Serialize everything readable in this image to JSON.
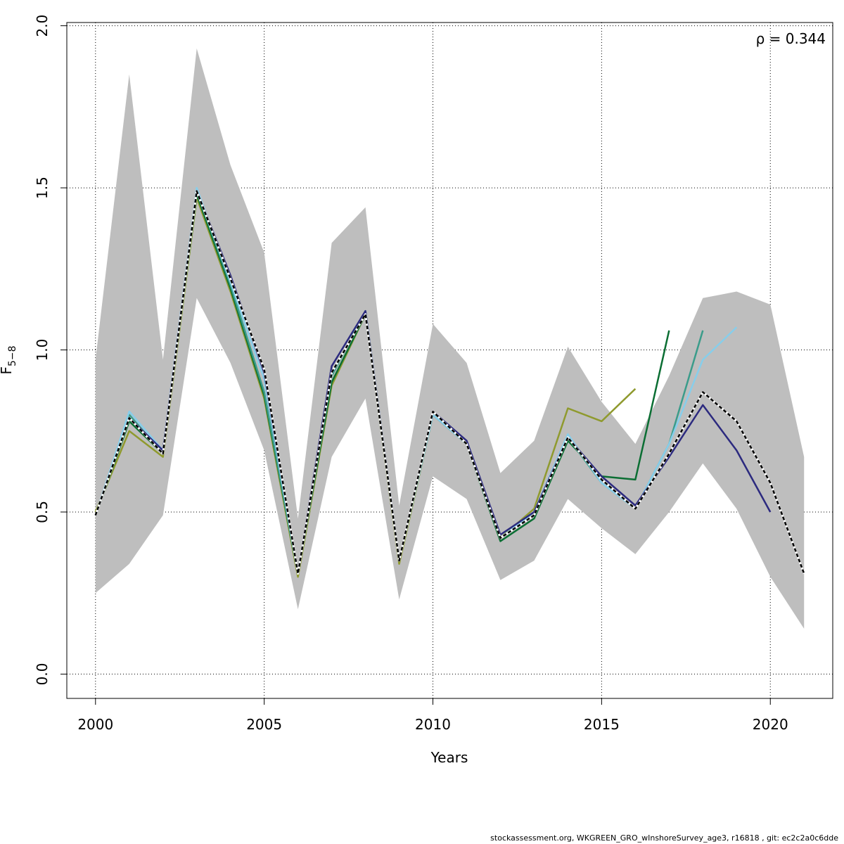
{
  "chart_data": {
    "type": "line",
    "title": "",
    "xlabel": "Years",
    "ylabel": {
      "main": "F",
      "sub": "5−8"
    },
    "xlim": [
      1999.15,
      2021.85
    ],
    "ylim": [
      -0.075,
      2.01
    ],
    "x_ticks": [
      2000,
      2005,
      2010,
      2015,
      2020
    ],
    "x_tick_labels": [
      "2000",
      "2005",
      "2010",
      "2015",
      "2020"
    ],
    "y_ticks": [
      0,
      0.5,
      1,
      1.5,
      2
    ],
    "y_tick_labels": [
      "0.0",
      "0.5",
      "1.0",
      "1.5",
      "2.0"
    ],
    "grid": true,
    "annotation": "ρ = 0.344",
    "band": {
      "color": "#bebebe",
      "x": [
        2000,
        2001,
        2002,
        2003,
        2004,
        2005,
        2006,
        2007,
        2008,
        2009,
        2010,
        2011,
        2012,
        2013,
        2014,
        2015,
        2016,
        2017,
        2018,
        2019,
        2020,
        2021
      ],
      "lower": [
        0.25,
        0.34,
        0.49,
        1.16,
        0.96,
        0.69,
        0.2,
        0.67,
        0.85,
        0.23,
        0.61,
        0.54,
        0.29,
        0.35,
        0.54,
        0.45,
        0.37,
        0.5,
        0.65,
        0.51,
        0.3,
        0.14
      ],
      "upper": [
        0.97,
        1.85,
        0.97,
        1.93,
        1.57,
        1.3,
        0.48,
        1.33,
        1.44,
        0.52,
        1.08,
        0.96,
        0.62,
        0.72,
        1.01,
        0.84,
        0.71,
        0.92,
        1.16,
        1.18,
        1.14,
        0.67
      ]
    },
    "series": [
      {
        "color": "#000000",
        "dashed": true,
        "x": [
          2000,
          2001,
          2002,
          2003,
          2004,
          2005,
          2006,
          2007,
          2008,
          2009,
          2010,
          2011,
          2012,
          2013,
          2014,
          2015,
          2016,
          2017,
          2018,
          2019,
          2020,
          2021
        ],
        "values": [
          0.49,
          0.79,
          0.68,
          1.49,
          1.22,
          0.94,
          0.31,
          0.93,
          1.11,
          0.35,
          0.81,
          0.71,
          0.42,
          0.49,
          0.73,
          0.6,
          0.51,
          0.68,
          0.87,
          0.78,
          0.59,
          0.31
        ]
      },
      {
        "color": "#2c2a7f",
        "x": [
          2000,
          2001,
          2002,
          2003,
          2004,
          2005,
          2006,
          2007,
          2008,
          2009,
          2010,
          2011,
          2012,
          2013,
          2014,
          2015,
          2016,
          2017,
          2018,
          2019,
          2020
        ],
        "values": [
          0.49,
          0.79,
          0.69,
          1.49,
          1.23,
          0.93,
          0.31,
          0.95,
          1.12,
          0.35,
          0.81,
          0.72,
          0.43,
          0.5,
          0.73,
          0.61,
          0.52,
          0.67,
          0.83,
          0.69,
          0.5
        ]
      },
      {
        "color": "#87ceeb",
        "x": [
          2000,
          2001,
          2002,
          2003,
          2004,
          2005,
          2006,
          2007,
          2008,
          2009,
          2010,
          2011,
          2012,
          2013,
          2014,
          2015,
          2016,
          2017,
          2018,
          2019
        ],
        "values": [
          0.49,
          0.81,
          0.69,
          1.5,
          1.21,
          0.91,
          0.31,
          0.93,
          1.11,
          0.35,
          0.8,
          0.71,
          0.42,
          0.5,
          0.74,
          0.59,
          0.51,
          0.71,
          0.97,
          1.07
        ]
      },
      {
        "color": "#3a9c8a",
        "x": [
          2000,
          2001,
          2002,
          2003,
          2004,
          2005,
          2006,
          2007,
          2008,
          2009,
          2010,
          2011,
          2012,
          2013,
          2014,
          2015,
          2016,
          2017,
          2018
        ],
        "values": [
          0.49,
          0.8,
          0.68,
          1.49,
          1.2,
          0.87,
          0.31,
          0.92,
          1.12,
          0.35,
          0.8,
          0.71,
          0.42,
          0.49,
          0.73,
          0.59,
          0.51,
          0.71,
          1.06
        ]
      },
      {
        "color": "#0b6e33",
        "x": [
          2000,
          2001,
          2002,
          2003,
          2004,
          2005,
          2006,
          2007,
          2008,
          2009,
          2010,
          2011,
          2012,
          2013,
          2014,
          2015,
          2016,
          2017
        ],
        "values": [
          0.49,
          0.78,
          0.68,
          1.48,
          1.19,
          0.86,
          0.31,
          0.9,
          1.11,
          0.35,
          0.8,
          0.71,
          0.41,
          0.48,
          0.72,
          0.61,
          0.6,
          1.06
        ]
      },
      {
        "color": "#8f9a2e",
        "x": [
          2000,
          2001,
          2002,
          2003,
          2004,
          2005,
          2006,
          2007,
          2008,
          2009,
          2010,
          2011,
          2012,
          2013,
          2014,
          2015,
          2016
        ],
        "values": [
          0.5,
          0.75,
          0.67,
          1.47,
          1.18,
          0.85,
          0.3,
          0.89,
          1.11,
          0.34,
          0.8,
          0.71,
          0.42,
          0.51,
          0.82,
          0.78,
          0.88
        ]
      }
    ]
  },
  "footer": "stockassessment.org, WKGREEN_GRO_wInshoreSurvey_age3, r16818 , git: ec2c2a0c6dde"
}
